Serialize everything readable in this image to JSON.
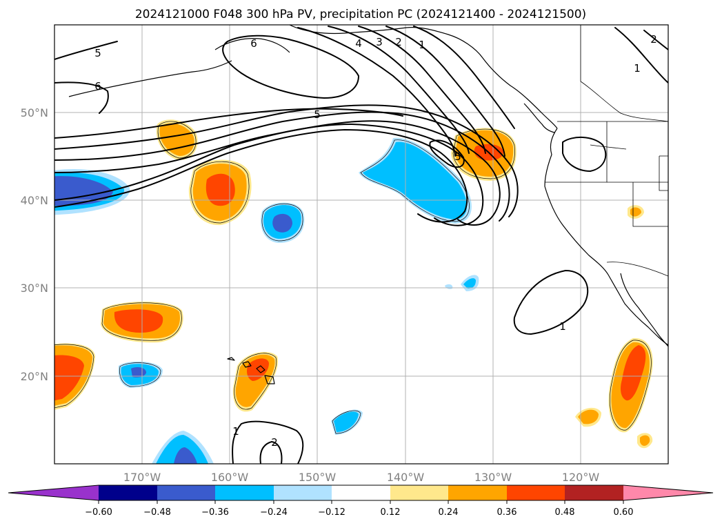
{
  "title": "2024121000 F048 300 hPa PV, precipitation PC (2024121400 - 2024121500)",
  "map": {
    "lon_range": [
      -180,
      -110
    ],
    "lat_range": [
      10,
      60
    ],
    "lon_ticks": [
      {
        "lon": -170,
        "label": "170°W"
      },
      {
        "lon": -160,
        "label": "160°W"
      },
      {
        "lon": -150,
        "label": "150°W"
      },
      {
        "lon": -140,
        "label": "140°W"
      },
      {
        "lon": -130,
        "label": "130°W"
      },
      {
        "lon": -120,
        "label": "120°W"
      }
    ],
    "lat_ticks": [
      {
        "lat": 20,
        "label": "20°N"
      },
      {
        "lat": 30,
        "label": "30°N"
      },
      {
        "lat": 40,
        "label": "40°N"
      },
      {
        "lat": 50,
        "label": "50°N"
      }
    ],
    "grid": true
  },
  "colors": {
    "neg_060": "#9932cc",
    "neg_048": "#00008b",
    "neg_036": "#3a5bcd",
    "neg_024": "#00bfff",
    "neg_012": "#b0e2ff",
    "zero": "#ffffff",
    "pos_012": "#ffe88c",
    "pos_024": "#ffa500",
    "pos_036": "#ff4500",
    "pos_048": "#b22222",
    "pos_060": "#ff88aa"
  },
  "pv_contour_labels": [
    "5",
    "6",
    "6",
    "5",
    "4",
    "3",
    "2",
    "1",
    "5",
    "2",
    "1",
    "1",
    "1",
    "2"
  ],
  "colorbar": {
    "tick_labels": [
      "−0.60",
      "−0.48",
      "−0.36",
      "−0.24",
      "−0.12",
      "0.12",
      "0.24",
      "0.36",
      "0.48",
      "0.60"
    ]
  }
}
